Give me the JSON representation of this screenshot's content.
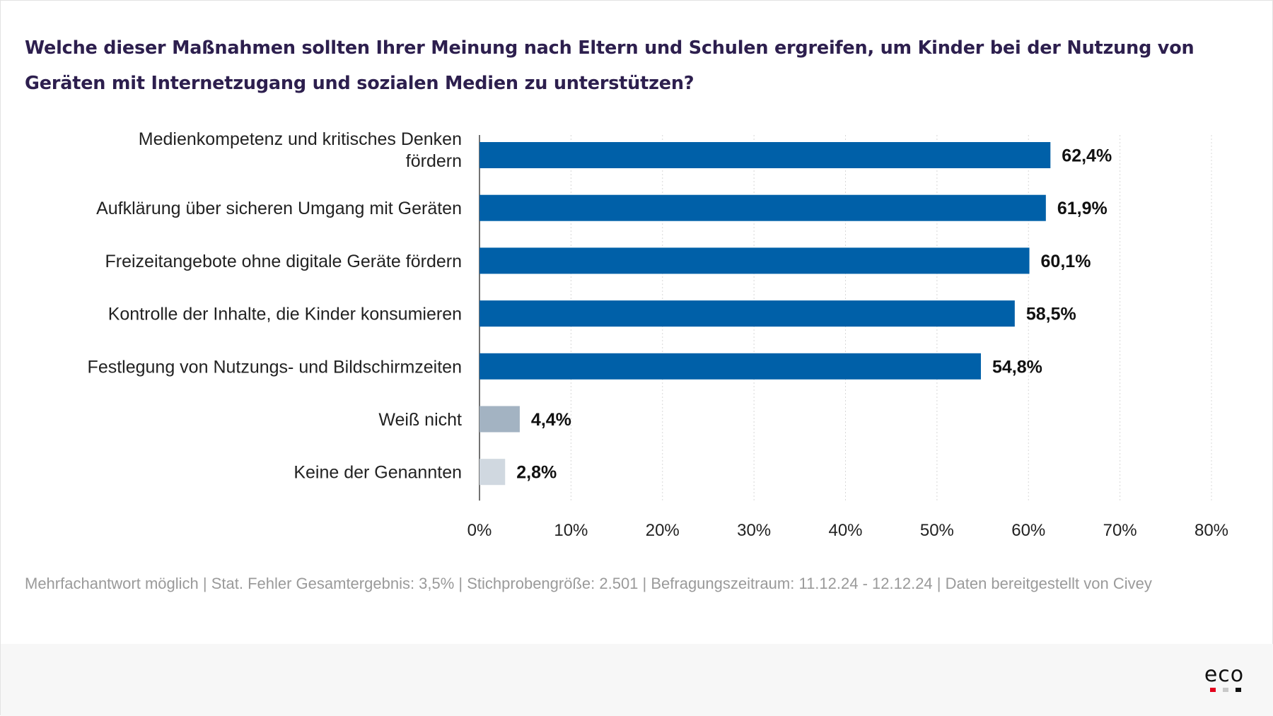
{
  "title": "Welche dieser Maßnahmen sollten Ihrer Meinung nach Eltern und Schulen ergreifen, um Kinder bei der Nutzung von Geräten mit Internetzugang und sozialen Medien zu unterstützen?",
  "footnote": "Mehrfachantwort möglich | Stat. Fehler Gesamtergebnis: 3,5% | Stichprobengröße: 2.501 | Befragungszeitraum: 11.12.24 - 12.12.24 | Daten bereitgestellt von Civey",
  "logo": {
    "text": "eco",
    "dot_colors": [
      "#e3001b",
      "#c8c8c8",
      "#111111"
    ]
  },
  "colors": {
    "primary": "#0060a8",
    "neutral": "#a3b3c2",
    "light": "#d0d8e0",
    "grid": "#d8d8d8",
    "title": "#2d1f4e"
  },
  "chart_data": {
    "type": "bar",
    "orientation": "horizontal",
    "categories": [
      "Medienkompetenz und kritisches Denken fördern",
      "Aufklärung über sicheren Umgang mit Geräten",
      "Freizeitangebote ohne digitale Geräte fördern",
      "Kontrolle der Inhalte, die Kinder konsumieren",
      "Festlegung von Nutzungs- und Bildschirmzeiten",
      "Weiß nicht",
      "Keine der Genannten"
    ],
    "category_lines": [
      [
        "Medienkompetenz und kritisches Denken",
        "fördern"
      ],
      [
        "Aufklärung über sicheren Umgang mit Geräten"
      ],
      [
        "Freizeitangebote ohne digitale Geräte fördern"
      ],
      [
        "Kontrolle der Inhalte, die Kinder konsumieren"
      ],
      [
        "Festlegung von Nutzungs- und Bildschirmzeiten"
      ],
      [
        "Weiß nicht"
      ],
      [
        "Keine der Genannten"
      ]
    ],
    "values": [
      62.4,
      61.9,
      60.1,
      58.5,
      54.8,
      4.4,
      2.8
    ],
    "value_labels": [
      "62,4%",
      "61,9%",
      "60,1%",
      "58,5%",
      "54,8%",
      "4,4%",
      "2,8%"
    ],
    "bar_colors": [
      "#0060a8",
      "#0060a8",
      "#0060a8",
      "#0060a8",
      "#0060a8",
      "#a3b3c2",
      "#d0d8e0"
    ],
    "xlim": [
      0,
      80
    ],
    "xticks": [
      0,
      10,
      20,
      30,
      40,
      50,
      60,
      70,
      80
    ],
    "xtick_labels": [
      "0%",
      "10%",
      "20%",
      "30%",
      "40%",
      "50%",
      "60%",
      "70%",
      "80%"
    ],
    "grid": "vertical dotted",
    "legend": "none"
  }
}
